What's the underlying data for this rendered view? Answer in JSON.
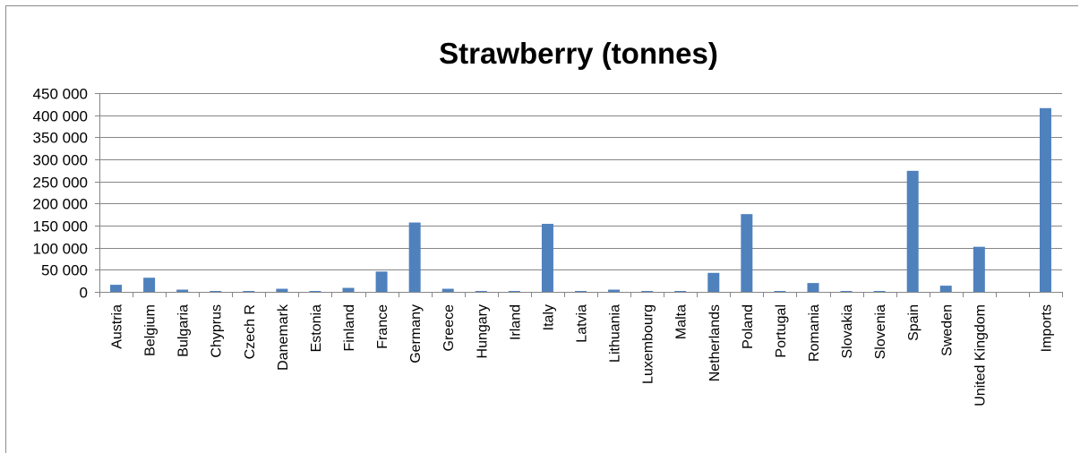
{
  "chart_data": {
    "type": "bar",
    "title": "Strawberry (tonnes)",
    "categories": [
      "Austria",
      "Belgium",
      "Bulgaria",
      "Chyprus",
      "Czech R",
      "Danemark",
      "Estonia",
      "Finland",
      "France",
      "Germany",
      "Greece",
      "Hungary",
      "Irland",
      "Italy",
      "Latvia",
      "Lithuania",
      "Luxembourg",
      "Malta",
      "Netherlands",
      "Poland",
      "Portugal",
      "Romania",
      "Slovakia",
      "Slovenia",
      "Spain",
      "Sweden",
      "United Kingdom",
      "",
      "Imports"
    ],
    "values": [
      16000,
      32000,
      5000,
      2000,
      2000,
      7000,
      2000,
      9000,
      46000,
      157000,
      7000,
      2000,
      2000,
      154000,
      2000,
      5000,
      2000,
      2000,
      43000,
      176000,
      2000,
      20000,
      2000,
      2000,
      274000,
      14000,
      102000,
      null,
      416000
    ],
    "ylim": [
      0,
      450000
    ],
    "yticks": [
      0,
      50000,
      100000,
      150000,
      200000,
      250000,
      300000,
      350000,
      400000,
      450000
    ],
    "ytick_labels": [
      "0",
      "50 000",
      "100 000",
      "150 000",
      "200 000",
      "250 000",
      "300 000",
      "350 000",
      "400 000",
      "450 000"
    ],
    "grid": true,
    "bar_color": "#4f81bd",
    "grid_color": "#868686"
  }
}
